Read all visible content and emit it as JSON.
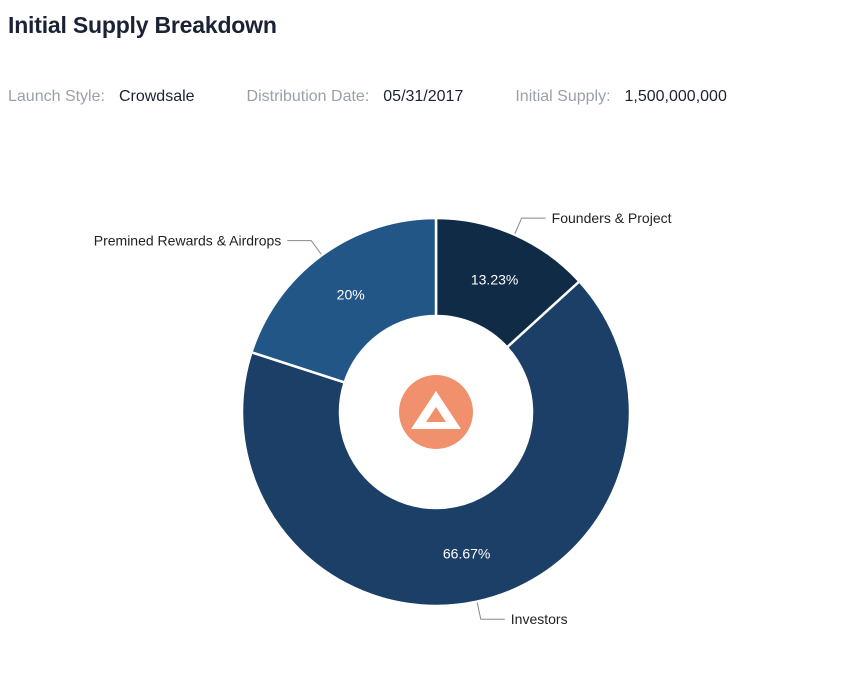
{
  "header": {
    "title": "Initial Supply Breakdown"
  },
  "meta": [
    {
      "label": "Launch Style:",
      "value": "Crowdsale"
    },
    {
      "label": "Distribution Date:",
      "value": "05/31/2017"
    },
    {
      "label": "Initial Supply:",
      "value": "1,500,000,000"
    }
  ],
  "chart_data": {
    "type": "pie",
    "donut": true,
    "start": "top, clockwise",
    "slices": [
      {
        "name": "Founders & Project",
        "value": 13.23,
        "label": "13.23%",
        "color": "#102b46"
      },
      {
        "name": "Investors",
        "value": 66.67,
        "label": "66.67%",
        "color": "#1b3f66"
      },
      {
        "name": "Premined Rewards & Airdrops",
        "value": 20,
        "label": "20%",
        "color": "#225687"
      }
    ],
    "center_icon": {
      "name": "bat-logo-icon",
      "color": "#f1906c"
    }
  }
}
